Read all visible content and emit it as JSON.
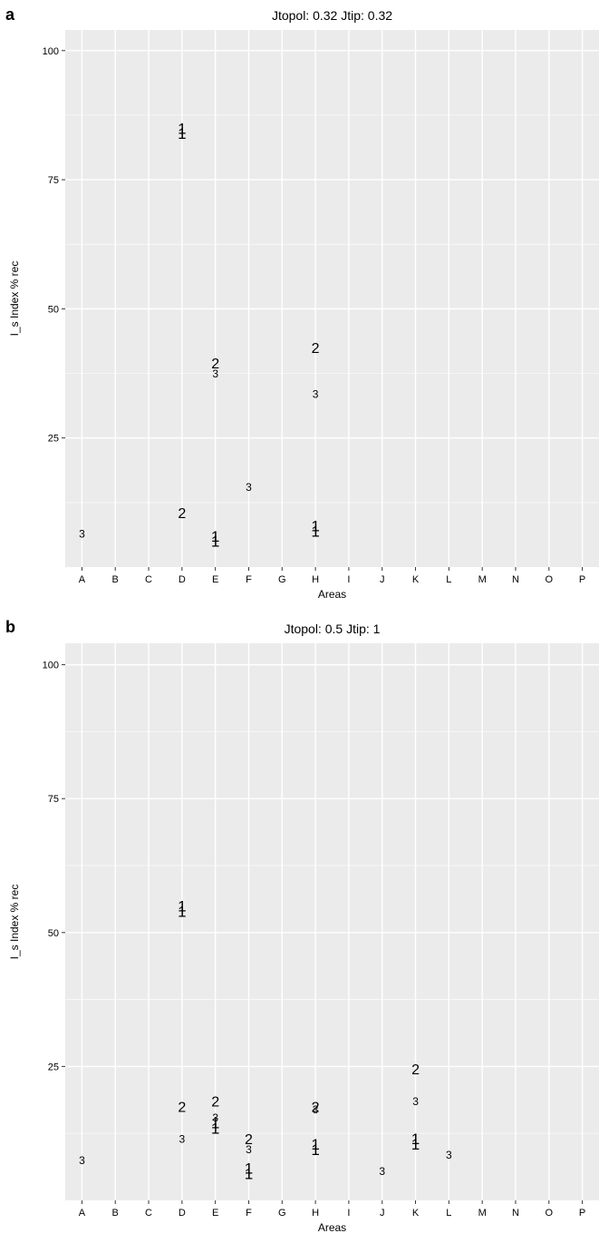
{
  "chart_data": [
    {
      "type": "scatter",
      "panel_label": "a",
      "title": "Jtopol: 0.32 Jtip: 0.32",
      "xlabel": "Areas",
      "ylabel": "I_s Index % rec",
      "x_categories": [
        "A",
        "B",
        "C",
        "D",
        "E",
        "F",
        "G",
        "H",
        "I",
        "J",
        "K",
        "L",
        "M",
        "N",
        "O",
        "P"
      ],
      "ylim": [
        0,
        104
      ],
      "y_ticks": [
        25,
        50,
        75,
        100
      ],
      "grid": true,
      "panel_background": "#ebebeb",
      "grid_color": "#ffffff",
      "points": [
        {
          "x": "A",
          "y": 6.5,
          "label": "3"
        },
        {
          "x": "D",
          "y": 84,
          "label": "1"
        },
        {
          "x": "D",
          "y": 85,
          "label": "1"
        },
        {
          "x": "D",
          "y": 10.5,
          "label": "2"
        },
        {
          "x": "E",
          "y": 39.5,
          "label": "2"
        },
        {
          "x": "E",
          "y": 37.5,
          "label": "3"
        },
        {
          "x": "E",
          "y": 5,
          "label": "1"
        },
        {
          "x": "E",
          "y": 6,
          "label": "1"
        },
        {
          "x": "F",
          "y": 15.5,
          "label": "3"
        },
        {
          "x": "H",
          "y": 42.5,
          "label": "2"
        },
        {
          "x": "H",
          "y": 33.5,
          "label": "3"
        },
        {
          "x": "H",
          "y": 7,
          "label": "1"
        },
        {
          "x": "H",
          "y": 8,
          "label": "1"
        }
      ]
    },
    {
      "type": "scatter",
      "panel_label": "b",
      "title": "Jtopol: 0.5 Jtip: 1",
      "xlabel": "Areas",
      "ylabel": "I_s Index % rec",
      "x_categories": [
        "A",
        "B",
        "C",
        "D",
        "E",
        "F",
        "G",
        "H",
        "I",
        "J",
        "K",
        "L",
        "M",
        "N",
        "O",
        "P"
      ],
      "ylim": [
        0,
        104
      ],
      "y_ticks": [
        25,
        50,
        75,
        100
      ],
      "grid": true,
      "panel_background": "#ebebeb",
      "grid_color": "#ffffff",
      "points": [
        {
          "x": "A",
          "y": 7.5,
          "label": "3"
        },
        {
          "x": "D",
          "y": 54,
          "label": "1"
        },
        {
          "x": "D",
          "y": 55,
          "label": "1"
        },
        {
          "x": "D",
          "y": 17.5,
          "label": "2"
        },
        {
          "x": "D",
          "y": 11.5,
          "label": "3"
        },
        {
          "x": "E",
          "y": 18.5,
          "label": "2"
        },
        {
          "x": "E",
          "y": 15.5,
          "label": "3"
        },
        {
          "x": "E",
          "y": 13.5,
          "label": "1"
        },
        {
          "x": "E",
          "y": 14.5,
          "label": "1"
        },
        {
          "x": "F",
          "y": 11.5,
          "label": "2"
        },
        {
          "x": "F",
          "y": 9.5,
          "label": "3"
        },
        {
          "x": "F",
          "y": 5,
          "label": "1"
        },
        {
          "x": "F",
          "y": 6,
          "label": "1"
        },
        {
          "x": "H",
          "y": 17.5,
          "label": "2"
        },
        {
          "x": "H",
          "y": 17,
          "label": "3"
        },
        {
          "x": "H",
          "y": 9.5,
          "label": "1"
        },
        {
          "x": "H",
          "y": 10.5,
          "label": "1"
        },
        {
          "x": "J",
          "y": 5.5,
          "label": "3"
        },
        {
          "x": "K",
          "y": 24.5,
          "label": "2"
        },
        {
          "x": "K",
          "y": 18.5,
          "label": "3"
        },
        {
          "x": "K",
          "y": 10.5,
          "label": "1"
        },
        {
          "x": "K",
          "y": 11.5,
          "label": "1"
        },
        {
          "x": "L",
          "y": 8.5,
          "label": "3"
        }
      ]
    }
  ]
}
